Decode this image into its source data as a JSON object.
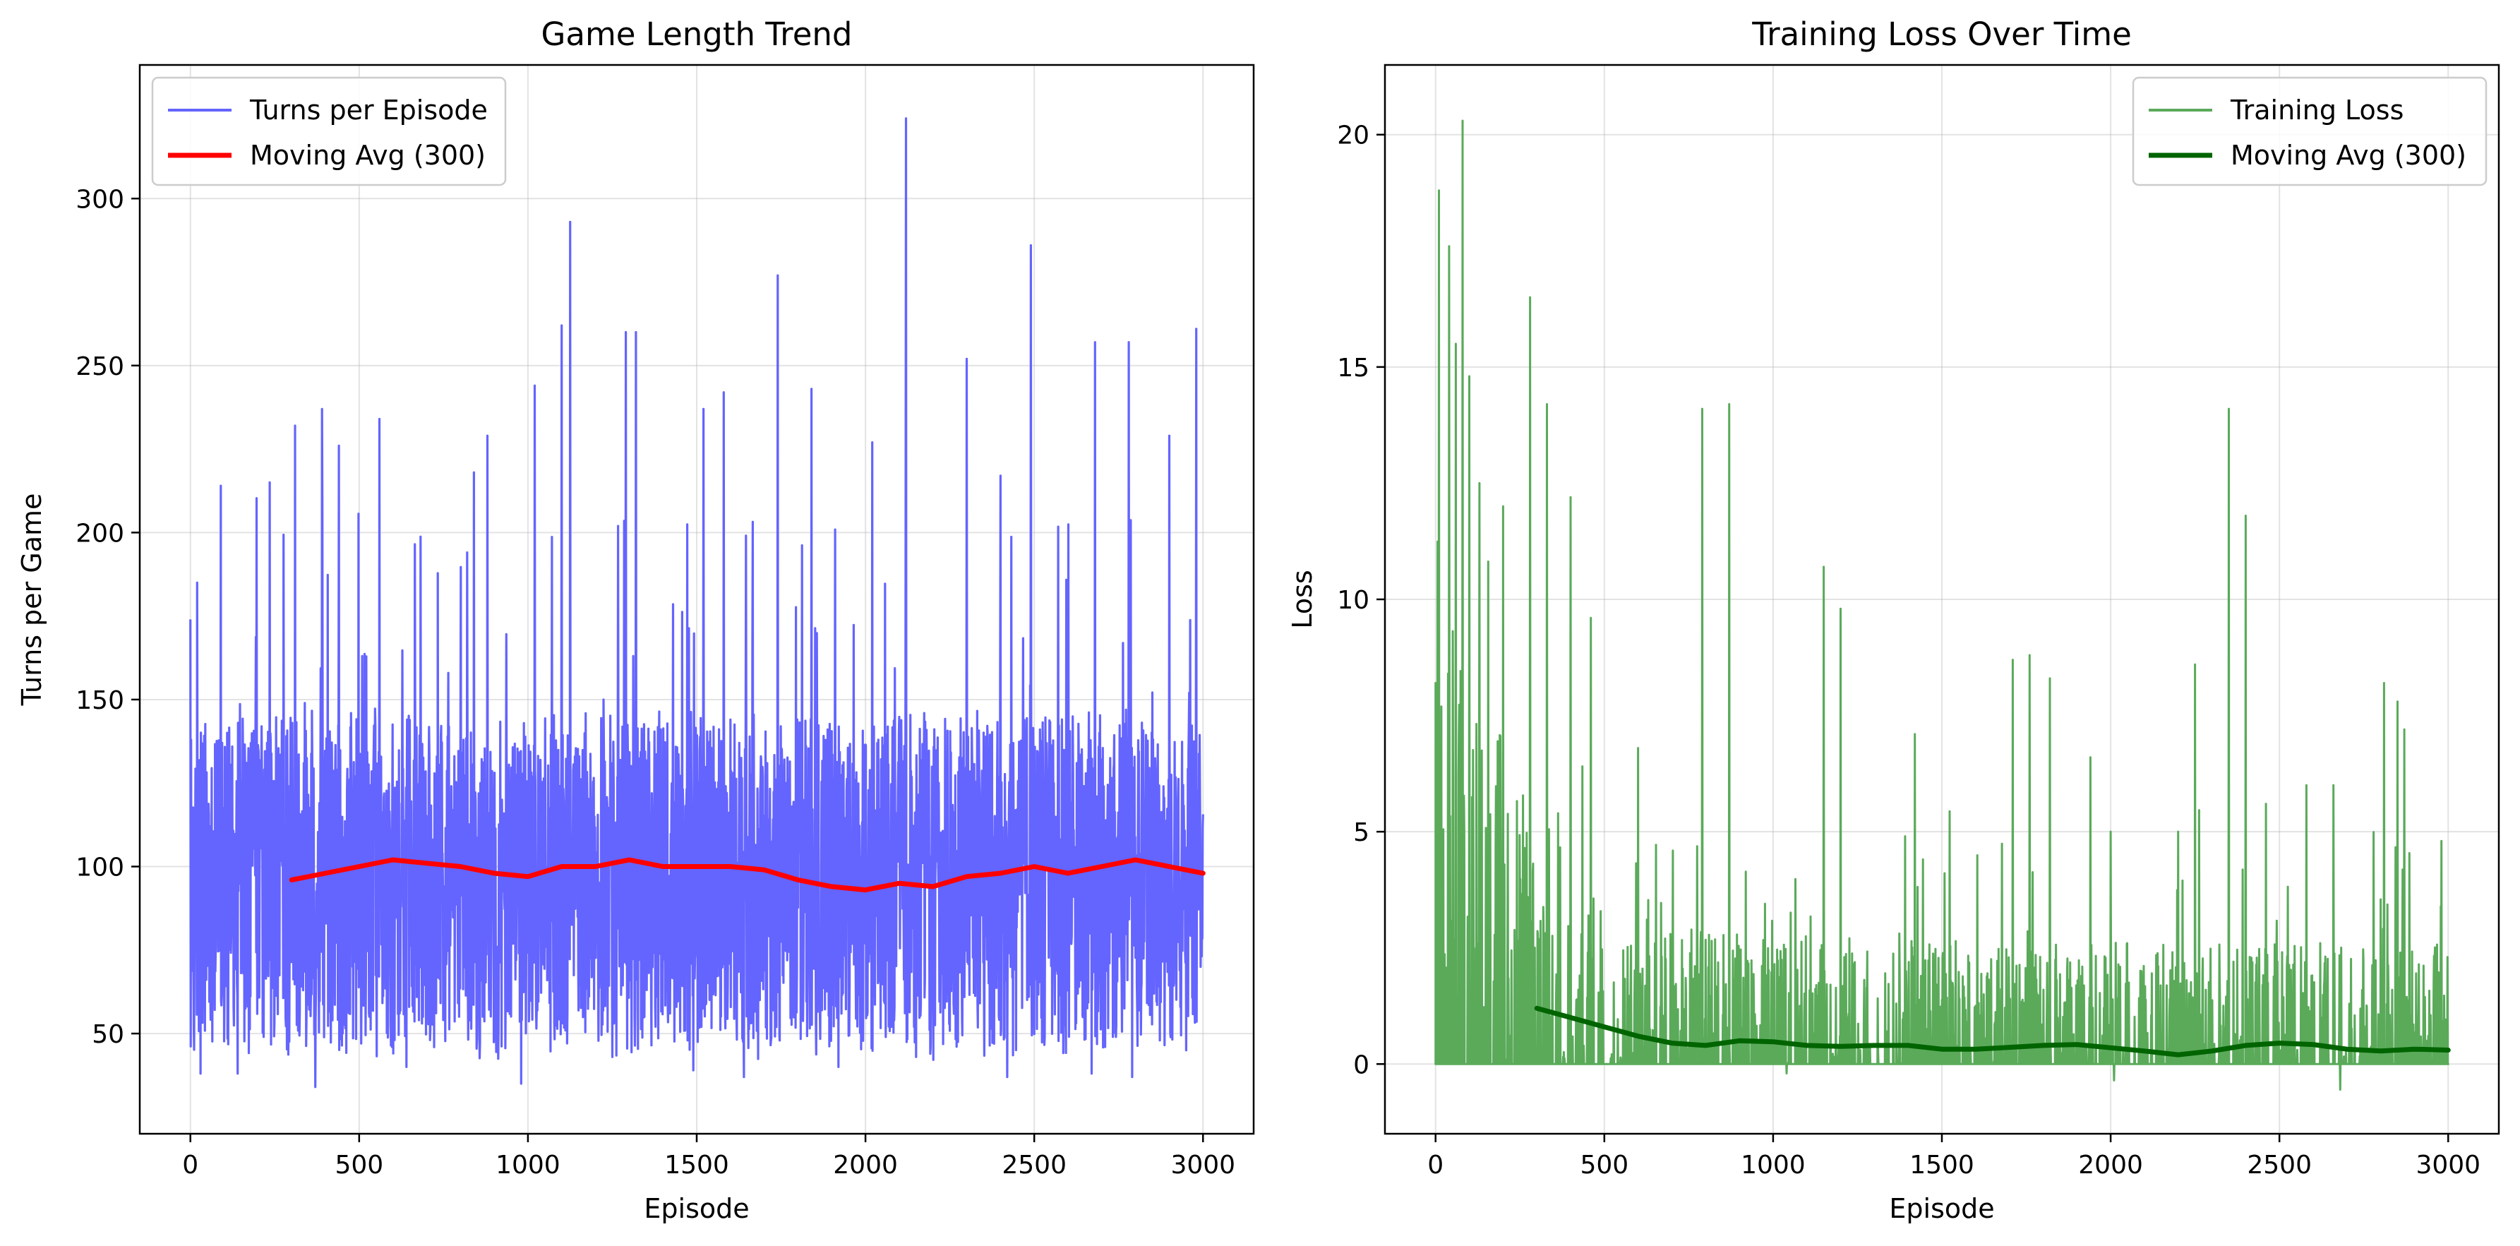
{
  "chart_data": [
    {
      "type": "line",
      "title": "Game Length Trend",
      "xlabel": "Episode",
      "ylabel": "Turns per Game",
      "xlim": [
        -150,
        3150
      ],
      "ylim": [
        20,
        340
      ],
      "xticks": [
        0,
        500,
        1000,
        1500,
        2000,
        2500,
        3000
      ],
      "yticks": [
        50,
        100,
        150,
        200,
        250,
        300
      ],
      "grid": true,
      "legend_position": "top-left",
      "series": [
        {
          "name": "Turns per Episode",
          "color": "#6464ff",
          "style": "noisy-line",
          "baseline": 98,
          "spread_low": 45,
          "spread_high": 160,
          "peaks": [
            [
              0,
              174
            ],
            [
              20,
              185
            ],
            [
              90,
              214
            ],
            [
              235,
              215
            ],
            [
              310,
              232
            ],
            [
              390,
              237
            ],
            [
              440,
              226
            ],
            [
              560,
              234
            ],
            [
              840,
              218
            ],
            [
              880,
              229
            ],
            [
              1020,
              244
            ],
            [
              1100,
              262
            ],
            [
              1125,
              293
            ],
            [
              1290,
              260
            ],
            [
              1320,
              260
            ],
            [
              1520,
              237
            ],
            [
              1580,
              242
            ],
            [
              1740,
              277
            ],
            [
              1840,
              243
            ],
            [
              2020,
              227
            ],
            [
              2120,
              324
            ],
            [
              2300,
              252
            ],
            [
              2400,
              217
            ],
            [
              2490,
              286
            ],
            [
              2680,
              257
            ],
            [
              2780,
              257
            ],
            [
              2900,
              229
            ],
            [
              2980,
              261
            ]
          ],
          "troughs": [
            [
              0,
              45
            ],
            [
              30,
              38
            ],
            [
              140,
              38
            ],
            [
              370,
              34
            ],
            [
              640,
              40
            ],
            [
              980,
              35
            ],
            [
              1250,
              43
            ],
            [
              1490,
              39
            ],
            [
              1640,
              37
            ],
            [
              1920,
              40
            ],
            [
              2150,
              43
            ],
            [
              2420,
              37
            ],
            [
              2670,
              38
            ],
            [
              2790,
              37
            ],
            [
              2950,
              45
            ]
          ]
        },
        {
          "name": "Moving Avg (300)",
          "color": "#ff0000",
          "x": [
            300,
            400,
            500,
            600,
            700,
            800,
            900,
            1000,
            1100,
            1200,
            1300,
            1400,
            1500,
            1600,
            1700,
            1800,
            1900,
            2000,
            2100,
            2200,
            2300,
            2400,
            2500,
            2600,
            2700,
            2800,
            2900,
            3000
          ],
          "values": [
            96,
            98,
            100,
            102,
            101,
            100,
            98,
            97,
            100,
            100,
            102,
            100,
            100,
            100,
            99,
            96,
            94,
            93,
            95,
            94,
            97,
            98,
            100,
            98,
            100,
            102,
            100,
            98
          ]
        }
      ]
    },
    {
      "type": "line",
      "title": "Training Loss Over Time",
      "xlabel": "Episode",
      "ylabel": "Loss",
      "xlim": [
        -150,
        3150
      ],
      "ylim": [
        -1.5,
        21.5
      ],
      "xticks": [
        0,
        500,
        1000,
        1500,
        2000,
        2500,
        3000
      ],
      "yticks": [
        0,
        5,
        10,
        15,
        20
      ],
      "grid": true,
      "legend_position": "top-right",
      "series": [
        {
          "name": "Training Loss",
          "color": "#5aaa5a",
          "style": "filled-spikes",
          "peaks": [
            [
              0,
              8.2
            ],
            [
              10,
              18.8
            ],
            [
              40,
              17.6
            ],
            [
              60,
              15.5
            ],
            [
              80,
              20.3
            ],
            [
              100,
              14.8
            ],
            [
              130,
              12.5
            ],
            [
              200,
              12.0
            ],
            [
              280,
              16.5
            ],
            [
              330,
              14.2
            ],
            [
              400,
              12.2
            ],
            [
              460,
              9.6
            ],
            [
              600,
              6.8
            ],
            [
              790,
              14.1
            ],
            [
              870,
              14.2
            ],
            [
              1150,
              10.7
            ],
            [
              1200,
              9.8
            ],
            [
              1420,
              7.1
            ],
            [
              1710,
              8.7
            ],
            [
              1760,
              8.8
            ],
            [
              1820,
              8.3
            ],
            [
              1940,
              6.6
            ],
            [
              2000,
              5.0
            ],
            [
              2200,
              5.0
            ],
            [
              2250,
              8.6
            ],
            [
              2350,
              14.1
            ],
            [
              2400,
              11.8
            ],
            [
              2460,
              5.6
            ],
            [
              2580,
              6.0
            ],
            [
              2660,
              6.0
            ],
            [
              2810,
              8.2
            ],
            [
              2850,
              7.8
            ],
            [
              2870,
              7.2
            ],
            [
              2980,
              4.8
            ]
          ],
          "dips": [
            [
              1040,
              -0.2
            ],
            [
              2010,
              -0.35
            ],
            [
              2680,
              -0.55
            ]
          ]
        },
        {
          "name": "Moving Avg (300)",
          "color": "#006400",
          "x": [
            300,
            400,
            500,
            600,
            700,
            800,
            900,
            1000,
            1100,
            1200,
            1300,
            1400,
            1500,
            1600,
            1700,
            1800,
            1900,
            2000,
            2100,
            2200,
            2300,
            2400,
            2500,
            2600,
            2700,
            2800,
            2900,
            3000
          ],
          "values": [
            1.2,
            1.0,
            0.8,
            0.6,
            0.45,
            0.4,
            0.5,
            0.48,
            0.4,
            0.38,
            0.4,
            0.4,
            0.32,
            0.32,
            0.36,
            0.4,
            0.42,
            0.35,
            0.28,
            0.2,
            0.28,
            0.4,
            0.45,
            0.42,
            0.32,
            0.28,
            0.32,
            0.3
          ]
        }
      ]
    }
  ]
}
